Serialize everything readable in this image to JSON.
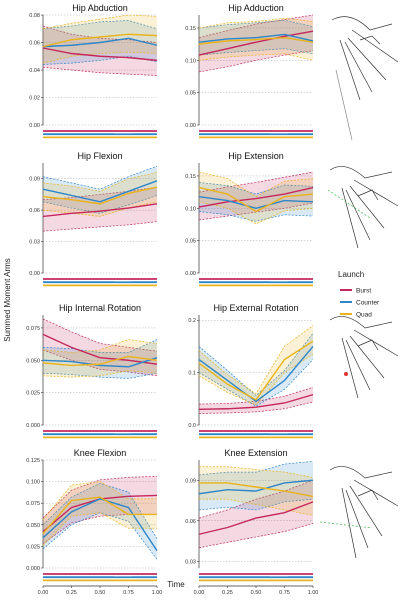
{
  "figure": {
    "y_axis_label": "Summed Moment Arms",
    "x_axis_label": "Time",
    "legend_title": "Launch",
    "colors": {
      "Burst": "#c4285c",
      "Counter": "#2f86c8",
      "Quad": "#e8b31c"
    }
  },
  "chart_data": [
    {
      "type": "line",
      "title": "Hip Abduction",
      "x": [
        0,
        0.25,
        0.5,
        0.75,
        1.0
      ],
      "ylim": [
        0.0,
        0.08
      ],
      "yticks": [
        "0.00",
        "0.02",
        "0.04",
        "0.06",
        "0.08"
      ],
      "xticks": [],
      "series": [
        {
          "name": "Burst",
          "values": [
            0.056,
            0.052,
            0.05,
            0.049,
            0.047
          ],
          "lower": [
            0.042,
            0.04,
            0.038,
            0.037,
            0.036
          ],
          "upper": [
            0.072,
            0.066,
            0.063,
            0.062,
            0.06
          ]
        },
        {
          "name": "Counter",
          "values": [
            0.057,
            0.058,
            0.06,
            0.063,
            0.058
          ],
          "lower": [
            0.044,
            0.045,
            0.047,
            0.05,
            0.046
          ],
          "upper": [
            0.07,
            0.072,
            0.075,
            0.076,
            0.07
          ]
        },
        {
          "name": "Quad",
          "values": [
            0.057,
            0.062,
            0.064,
            0.066,
            0.065
          ],
          "lower": [
            0.045,
            0.05,
            0.052,
            0.053,
            0.052
          ],
          "upper": [
            0.07,
            0.074,
            0.077,
            0.08,
            0.079
          ]
        }
      ]
    },
    {
      "type": "line",
      "title": "Hip Adduction",
      "x": [
        0,
        0.25,
        0.5,
        0.75,
        1.0
      ],
      "ylim": [
        0.0,
        0.17
      ],
      "yticks": [
        "0.00",
        "0.05",
        "0.10",
        "0.15"
      ],
      "xticks": [],
      "series": [
        {
          "name": "Burst",
          "values": [
            0.108,
            0.118,
            0.128,
            0.137,
            0.145
          ],
          "lower": [
            0.082,
            0.09,
            0.1,
            0.108,
            0.115
          ],
          "upper": [
            0.135,
            0.146,
            0.156,
            0.163,
            0.17
          ]
        },
        {
          "name": "Counter",
          "values": [
            0.128,
            0.133,
            0.135,
            0.14,
            0.13
          ],
          "lower": [
            0.108,
            0.112,
            0.115,
            0.118,
            0.11
          ],
          "upper": [
            0.15,
            0.155,
            0.158,
            0.162,
            0.152
          ]
        },
        {
          "name": "Quad",
          "values": [
            0.125,
            0.13,
            0.132,
            0.135,
            0.128
          ],
          "lower": [
            0.1,
            0.105,
            0.108,
            0.11,
            0.1
          ],
          "upper": [
            0.15,
            0.158,
            0.16,
            0.165,
            0.16
          ]
        }
      ]
    },
    {
      "type": "line",
      "title": "Hip Flexion",
      "x": [
        0,
        0.25,
        0.5,
        0.75,
        1.0
      ],
      "ylim": [
        0.0,
        0.105
      ],
      "yticks": [
        "0.00",
        "0.03",
        "0.06",
        "0.09"
      ],
      "xticks": [],
      "series": [
        {
          "name": "Burst",
          "values": [
            0.054,
            0.057,
            0.059,
            0.062,
            0.066
          ],
          "lower": [
            0.04,
            0.042,
            0.044,
            0.046,
            0.049
          ],
          "upper": [
            0.07,
            0.072,
            0.075,
            0.078,
            0.082
          ]
        },
        {
          "name": "Counter",
          "values": [
            0.08,
            0.074,
            0.068,
            0.078,
            0.088
          ],
          "lower": [
            0.068,
            0.062,
            0.057,
            0.065,
            0.074
          ],
          "upper": [
            0.092,
            0.086,
            0.08,
            0.092,
            0.102
          ]
        },
        {
          "name": "Quad",
          "values": [
            0.073,
            0.07,
            0.066,
            0.076,
            0.082
          ],
          "lower": [
            0.06,
            0.057,
            0.054,
            0.062,
            0.068
          ],
          "upper": [
            0.086,
            0.083,
            0.078,
            0.09,
            0.096
          ]
        }
      ]
    },
    {
      "type": "line",
      "title": "Hip Extension",
      "x": [
        0,
        0.25,
        0.5,
        0.75,
        1.0
      ],
      "ylim": [
        0.0,
        0.17
      ],
      "yticks": [
        "0.00",
        "0.05",
        "0.10",
        "0.15"
      ],
      "xticks": [],
      "series": [
        {
          "name": "Burst",
          "values": [
            0.102,
            0.11,
            0.115,
            0.122,
            0.132
          ],
          "lower": [
            0.082,
            0.088,
            0.094,
            0.1,
            0.108
          ],
          "upper": [
            0.125,
            0.133,
            0.14,
            0.148,
            0.156
          ]
        },
        {
          "name": "Counter",
          "values": [
            0.118,
            0.112,
            0.1,
            0.112,
            0.11
          ],
          "lower": [
            0.095,
            0.09,
            0.08,
            0.09,
            0.088
          ],
          "upper": [
            0.14,
            0.135,
            0.122,
            0.136,
            0.134
          ]
        },
        {
          "name": "Quad",
          "values": [
            0.132,
            0.122,
            0.095,
            0.118,
            0.122
          ],
          "lower": [
            0.11,
            0.1,
            0.076,
            0.096,
            0.1
          ],
          "upper": [
            0.156,
            0.146,
            0.118,
            0.142,
            0.146
          ]
        }
      ]
    },
    {
      "type": "line",
      "title": "Hip Internal Rotation",
      "x": [
        0,
        0.25,
        0.5,
        0.75,
        1.0
      ],
      "ylim": [
        0.0,
        0.085
      ],
      "yticks": [
        "0.000",
        "0.025",
        "0.050",
        "0.075"
      ],
      "xticks": [],
      "series": [
        {
          "name": "Burst",
          "values": [
            0.07,
            0.06,
            0.052,
            0.05,
            0.047
          ],
          "lower": [
            0.058,
            0.05,
            0.043,
            0.041,
            0.038
          ],
          "upper": [
            0.082,
            0.072,
            0.063,
            0.06,
            0.057
          ]
        },
        {
          "name": "Counter",
          "values": [
            0.05,
            0.049,
            0.046,
            0.045,
            0.052
          ],
          "lower": [
            0.04,
            0.039,
            0.037,
            0.036,
            0.04
          ],
          "upper": [
            0.06,
            0.059,
            0.056,
            0.056,
            0.066
          ]
        },
        {
          "name": "Quad",
          "values": [
            0.048,
            0.046,
            0.047,
            0.053,
            0.05
          ],
          "lower": [
            0.038,
            0.037,
            0.038,
            0.042,
            0.04
          ],
          "upper": [
            0.058,
            0.056,
            0.058,
            0.066,
            0.063
          ]
        }
      ]
    },
    {
      "type": "line",
      "title": "Hip External Rotation",
      "x": [
        0,
        0.25,
        0.5,
        0.75,
        1.0
      ],
      "ylim": [
        0.0,
        0.21
      ],
      "yticks": [
        "0.0",
        "0.1",
        "0.2"
      ],
      "xticks": [],
      "series": [
        {
          "name": "Burst",
          "values": [
            0.03,
            0.031,
            0.034,
            0.042,
            0.058
          ],
          "lower": [
            0.022,
            0.023,
            0.025,
            0.031,
            0.044
          ],
          "upper": [
            0.04,
            0.041,
            0.045,
            0.055,
            0.072
          ]
        },
        {
          "name": "Counter",
          "values": [
            0.125,
            0.085,
            0.045,
            0.085,
            0.15
          ],
          "lower": [
            0.1,
            0.068,
            0.036,
            0.068,
            0.125
          ],
          "upper": [
            0.15,
            0.104,
            0.056,
            0.104,
            0.175
          ]
        },
        {
          "name": "Quad",
          "values": [
            0.118,
            0.078,
            0.048,
            0.125,
            0.16
          ],
          "lower": [
            0.094,
            0.062,
            0.038,
            0.1,
            0.135
          ],
          "upper": [
            0.142,
            0.096,
            0.06,
            0.15,
            0.19
          ]
        }
      ]
    },
    {
      "type": "line",
      "title": "Knee Flexion",
      "x": [
        0,
        0.25,
        0.5,
        0.75,
        1.0
      ],
      "xticks": [
        "0.00",
        "0.25",
        "0.50",
        "0.75",
        "1.00"
      ],
      "ylim": [
        0.0,
        0.125
      ],
      "yticks": [
        "0.000",
        "0.025",
        "0.050",
        "0.075",
        "0.100",
        "0.125"
      ],
      "series": [
        {
          "name": "Burst",
          "values": [
            0.042,
            0.07,
            0.08,
            0.083,
            0.084
          ],
          "lower": [
            0.028,
            0.052,
            0.06,
            0.062,
            0.062
          ],
          "upper": [
            0.058,
            0.09,
            0.102,
            0.105,
            0.106
          ]
        },
        {
          "name": "Counter",
          "values": [
            0.035,
            0.065,
            0.08,
            0.07,
            0.02
          ],
          "lower": [
            0.022,
            0.05,
            0.064,
            0.054,
            0.01
          ],
          "upper": [
            0.05,
            0.082,
            0.098,
            0.088,
            0.034
          ]
        },
        {
          "name": "Quad",
          "values": [
            0.04,
            0.078,
            0.082,
            0.062,
            0.062
          ],
          "lower": [
            0.026,
            0.06,
            0.064,
            0.046,
            0.046
          ],
          "upper": [
            0.056,
            0.096,
            0.1,
            0.08,
            0.08
          ]
        }
      ]
    },
    {
      "type": "line",
      "title": "Knee Extension",
      "x": [
        0,
        0.25,
        0.5,
        0.75,
        1.0
      ],
      "xticks": [
        "0.00",
        "0.25",
        "0.50",
        "0.75",
        "1.00"
      ],
      "ylim": [
        0.025,
        0.105
      ],
      "yticks": [
        "0.03",
        "0.06",
        "0.09"
      ],
      "series": [
        {
          "name": "Burst",
          "values": [
            0.05,
            0.055,
            0.062,
            0.066,
            0.074
          ],
          "lower": [
            0.04,
            0.044,
            0.048,
            0.052,
            0.058
          ],
          "upper": [
            0.062,
            0.068,
            0.076,
            0.082,
            0.09
          ]
        },
        {
          "name": "Counter",
          "values": [
            0.08,
            0.083,
            0.082,
            0.088,
            0.09
          ],
          "lower": [
            0.068,
            0.07,
            0.068,
            0.074,
            0.076
          ],
          "upper": [
            0.094,
            0.096,
            0.096,
            0.102,
            0.104
          ]
        },
        {
          "name": "Quad",
          "values": [
            0.088,
            0.088,
            0.085,
            0.082,
            0.078
          ],
          "lower": [
            0.076,
            0.076,
            0.072,
            0.068,
            0.064
          ],
          "upper": [
            0.1,
            0.1,
            0.098,
            0.096,
            0.092
          ]
        }
      ]
    }
  ]
}
